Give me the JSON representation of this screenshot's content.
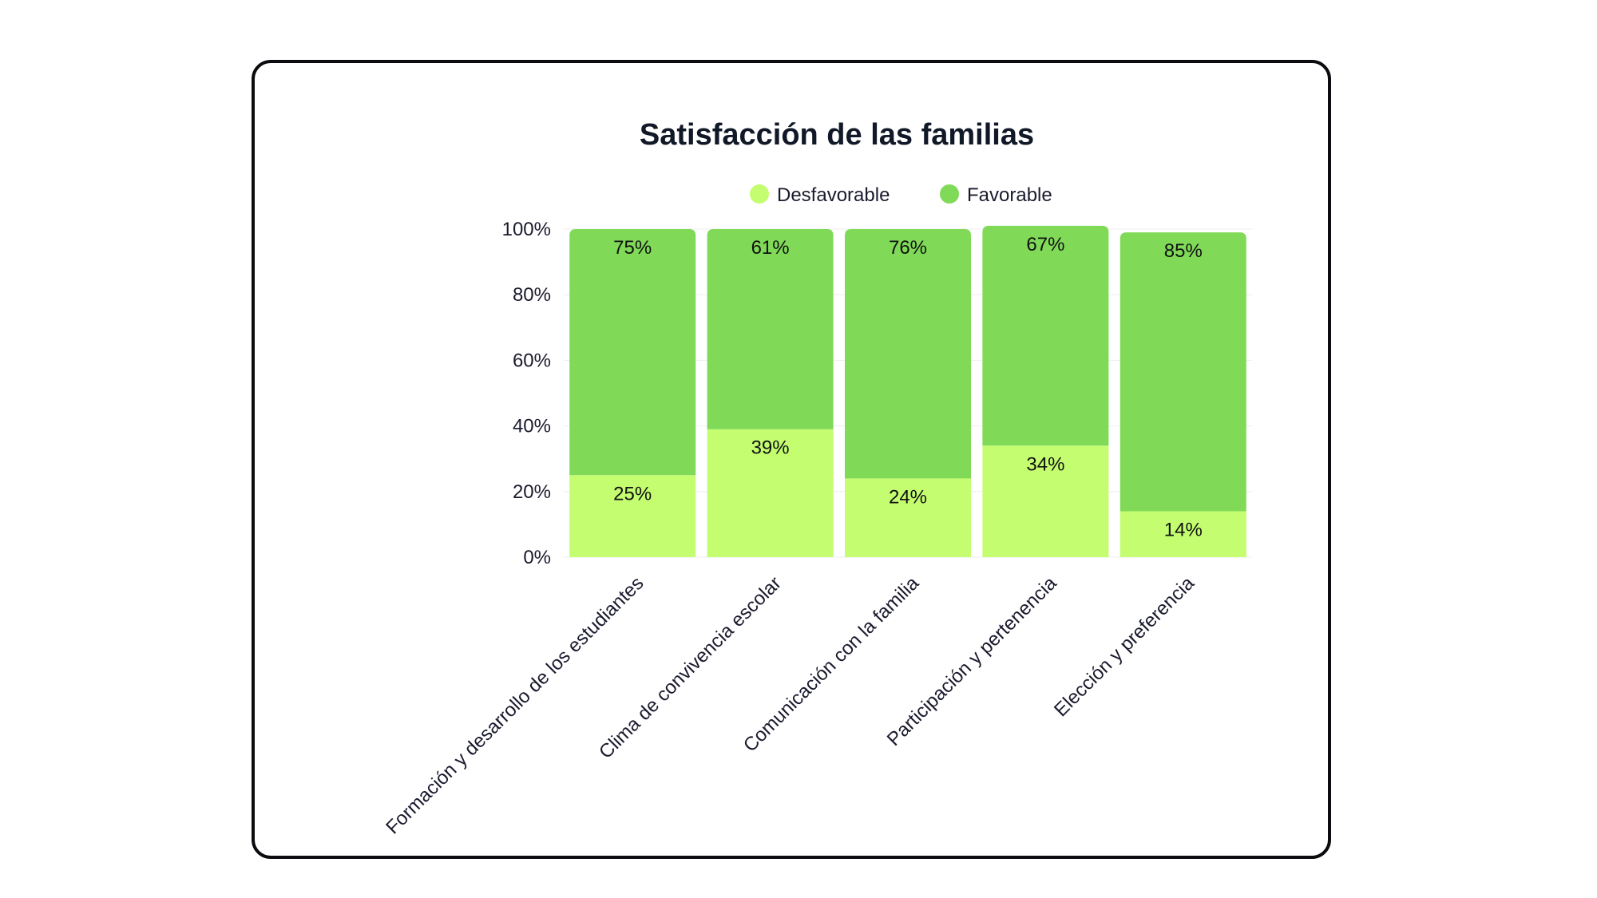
{
  "chart_data": {
    "type": "bar",
    "stacked": true,
    "title": "Satisfacción de las familias",
    "categories": [
      "Formación y desarrollo de los estudiantes",
      "Clima de convivencia escolar",
      "Comunicación con la familia",
      "Participación y pertenencia",
      "Elección y preferencia"
    ],
    "series": [
      {
        "name": "Desfavorable",
        "color": "#c4fd70",
        "values": [
          25,
          39,
          24,
          34,
          14
        ]
      },
      {
        "name": "Favorable",
        "color": "#80da58",
        "values": [
          75,
          61,
          76,
          67,
          85
        ]
      }
    ],
    "data_labels": {
      "Desfavorable": [
        "25%",
        "39%",
        "24%",
        "34%",
        "14%"
      ],
      "Favorable": [
        "75%",
        "61%",
        "76%",
        "67%",
        "85%"
      ]
    },
    "ylim": [
      0,
      100
    ],
    "yticks": [
      "0%",
      "20%",
      "40%",
      "60%",
      "80%",
      "100%"
    ],
    "legend_position": "top",
    "grid": true
  }
}
